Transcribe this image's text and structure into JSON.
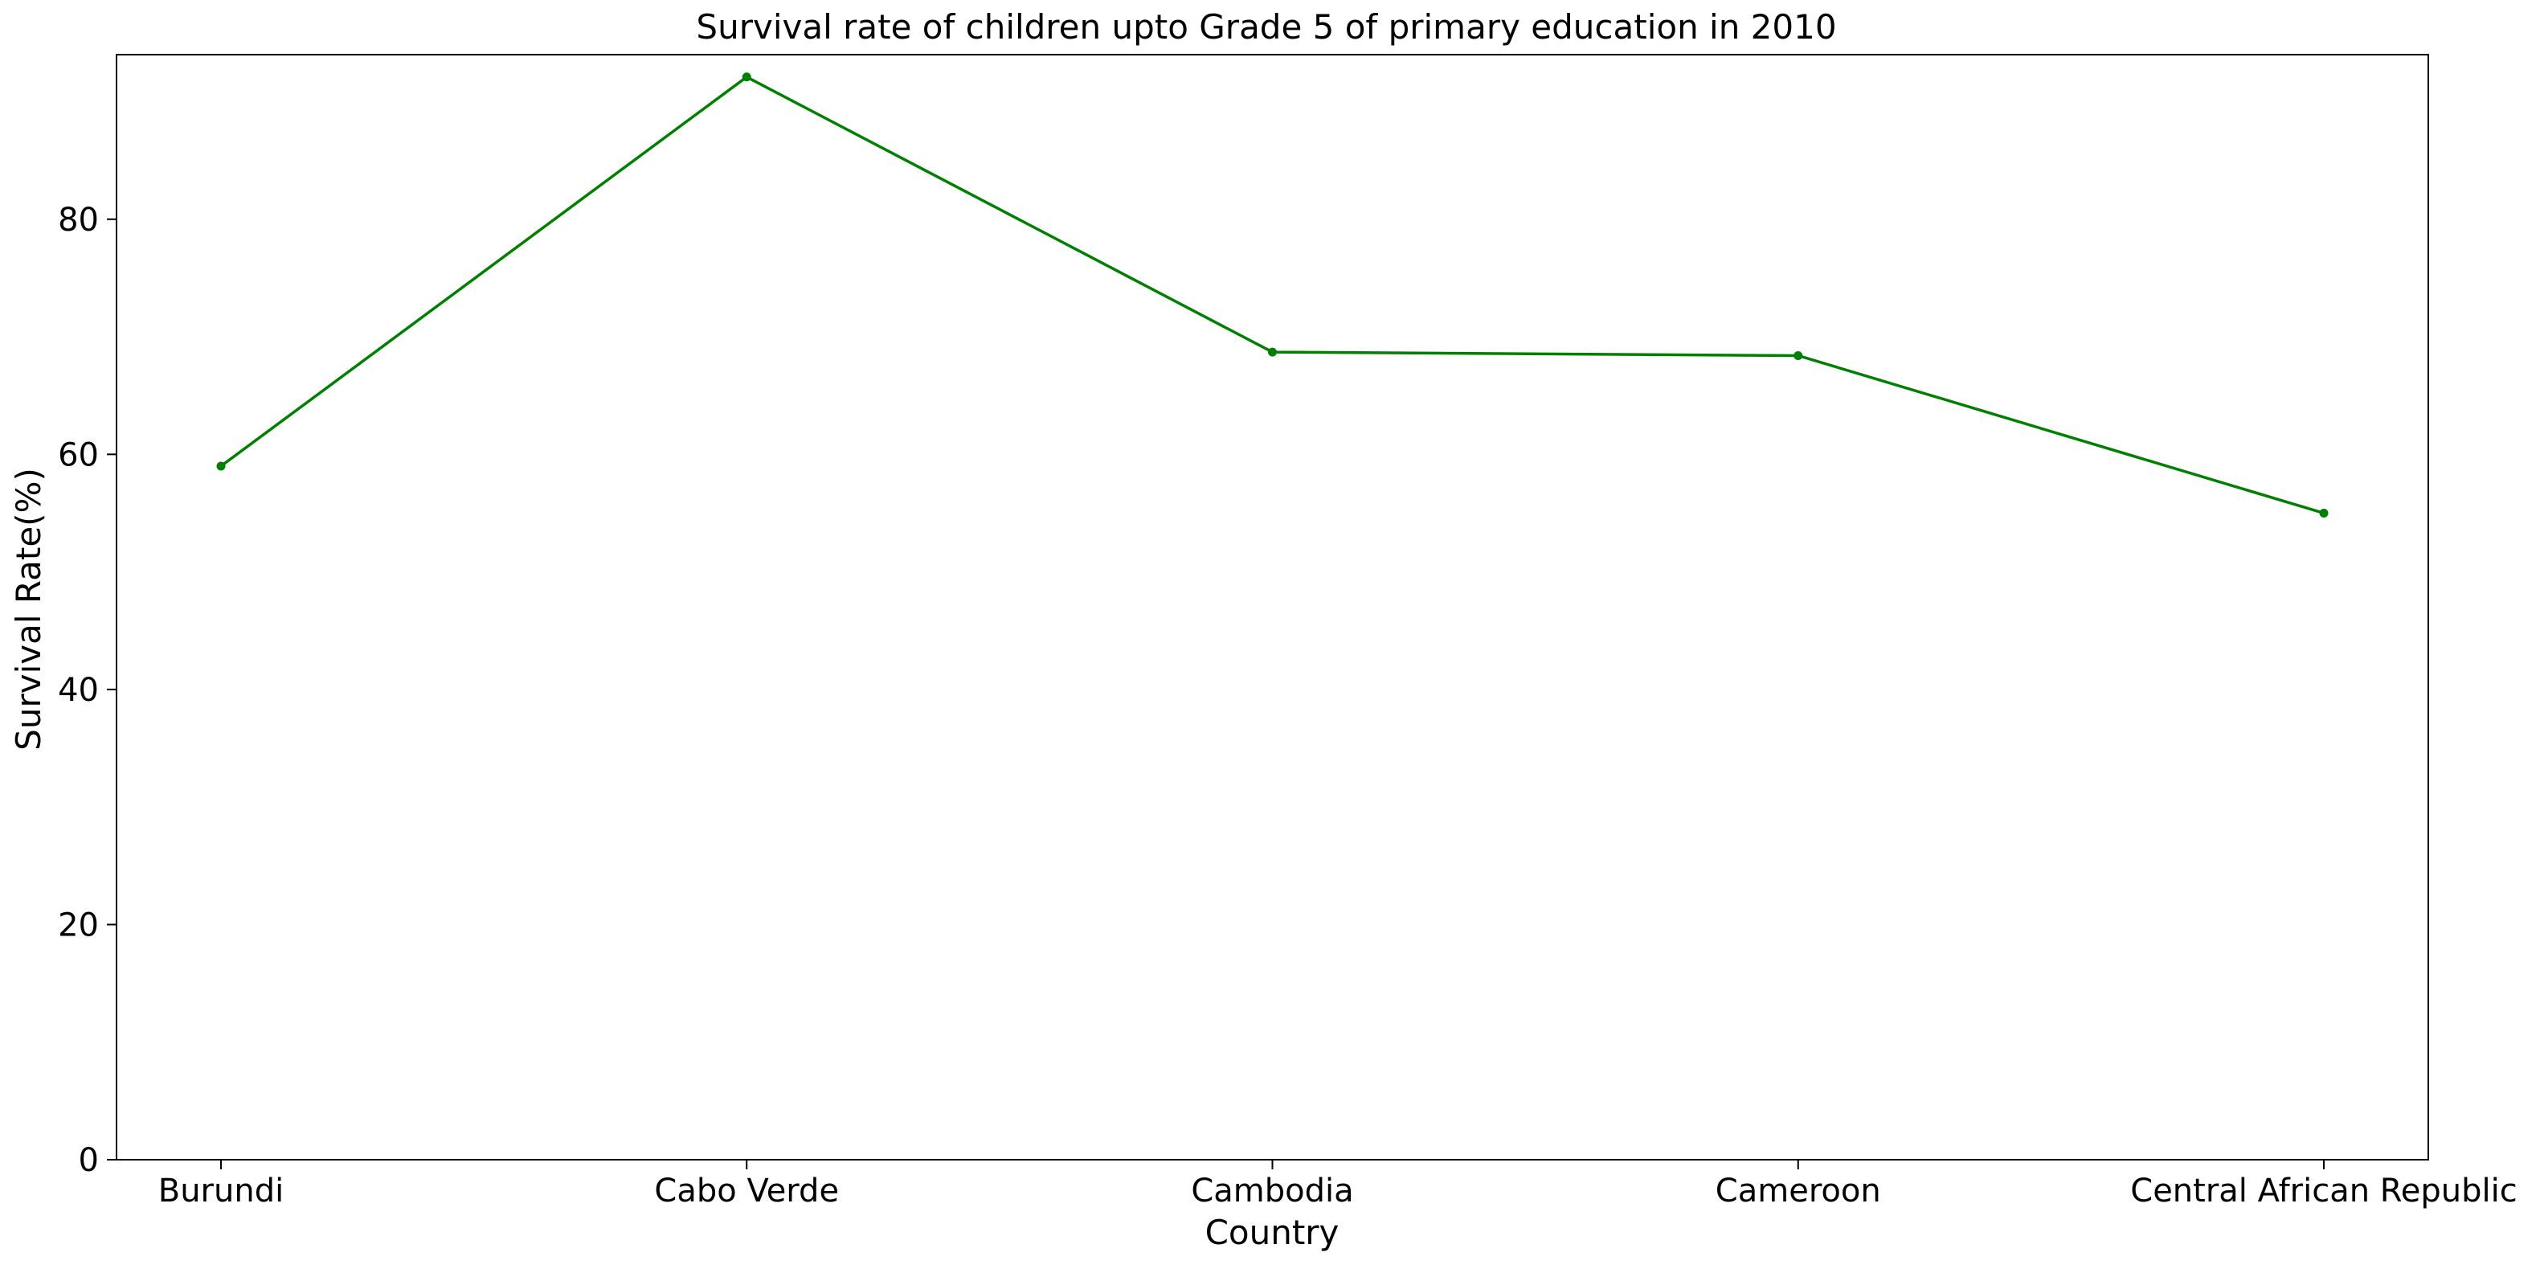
{
  "chart_data": {
    "type": "line",
    "title": "Survival rate of children upto Grade 5 of primary education in 2010",
    "xlabel": "Country",
    "ylabel": "Survival Rate(%)",
    "categories": [
      "Burundi",
      "Cabo Verde",
      "Cambodia",
      "Cameroon",
      "Central African Republic"
    ],
    "series": [
      {
        "values": [
          59.0,
          92.1,
          68.7,
          68.4,
          55.0
        ],
        "color": "#008000",
        "marker": "dot"
      }
    ],
    "ylim": [
      0,
      94
    ],
    "yticks": [
      0,
      20,
      40,
      60,
      80
    ],
    "grid": false,
    "legend": "none"
  }
}
